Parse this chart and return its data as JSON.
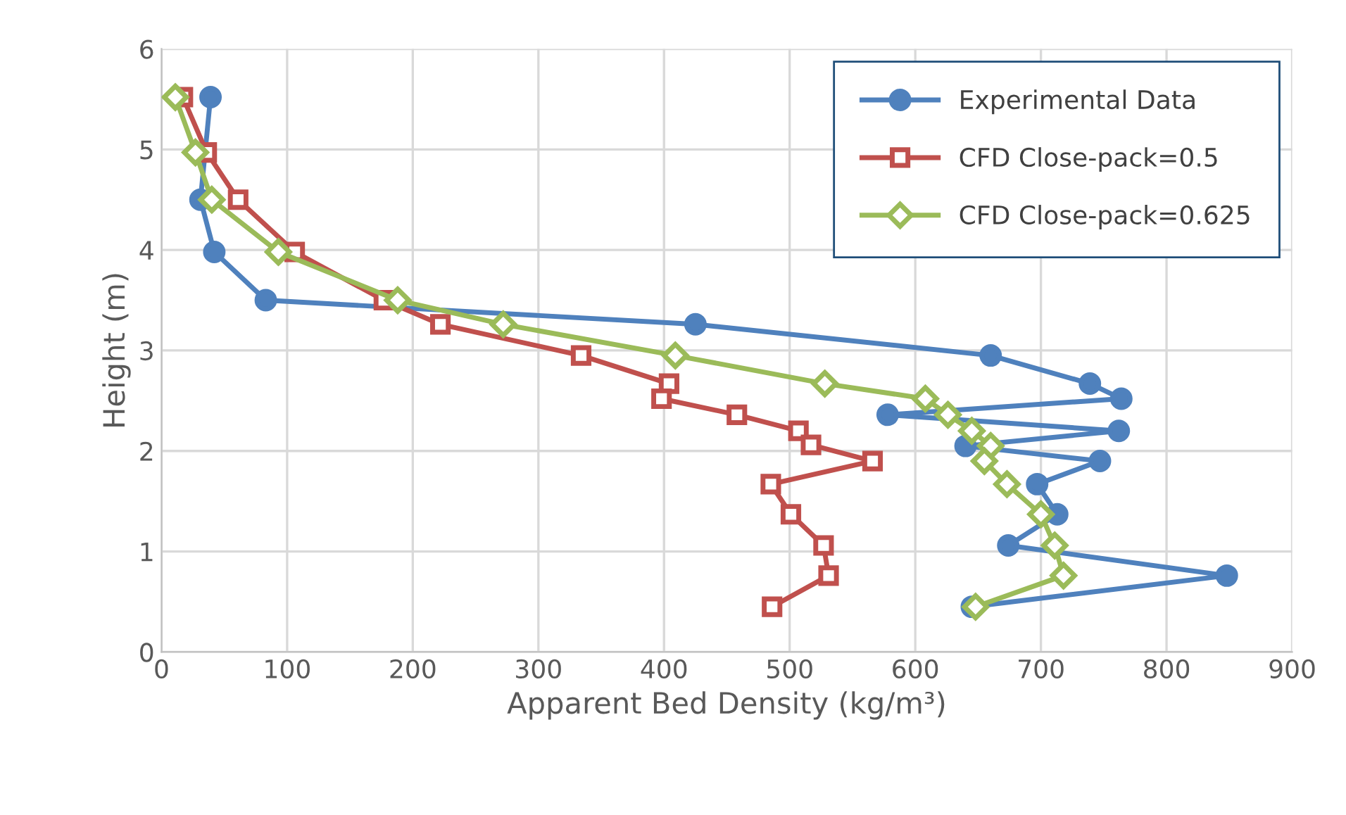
{
  "chart_data": {
    "type": "line",
    "xlabel": "Apparent Bed Density (kg/m³)",
    "ylabel": "Height (m)",
    "xlim": [
      0,
      900
    ],
    "xticks": [
      0,
      100,
      200,
      300,
      400,
      500,
      600,
      700,
      800,
      900
    ],
    "ylim": [
      0,
      6
    ],
    "yticks": [
      0,
      1,
      2,
      3,
      4,
      5,
      6
    ],
    "grid": true,
    "legend": "top right",
    "series": [
      {
        "name": "Experimental Data",
        "color": "#4f81bd",
        "marker": "circle",
        "x": [
          39,
          31,
          42,
          83,
          425,
          660,
          739,
          764,
          578,
          762,
          640,
          747,
          697,
          713,
          674,
          848,
          645
        ],
        "values": [
          5.52,
          4.5,
          3.98,
          3.5,
          3.26,
          2.95,
          2.67,
          2.52,
          2.36,
          2.2,
          2.05,
          1.9,
          1.67,
          1.37,
          1.06,
          0.76,
          0.45
        ]
      },
      {
        "name": "CFD Close-pack=0.5",
        "color": "#c0504d",
        "marker": "square",
        "x": [
          17,
          36,
          61,
          106,
          177,
          222,
          334,
          404,
          398,
          458,
          507,
          517,
          566,
          485,
          501,
          527,
          531,
          486
        ],
        "values": [
          5.52,
          4.97,
          4.5,
          3.98,
          3.5,
          3.26,
          2.95,
          2.67,
          2.52,
          2.36,
          2.2,
          2.06,
          1.9,
          1.67,
          1.37,
          1.06,
          0.76,
          0.45
        ]
      },
      {
        "name": "CFD Close-pack=0.625",
        "color": "#9bbb59",
        "marker": "diamond",
        "x": [
          11,
          27,
          40,
          93,
          188,
          272,
          409,
          528,
          608,
          626,
          645,
          660,
          655,
          673,
          700,
          711,
          718,
          648
        ],
        "values": [
          5.52,
          4.97,
          4.5,
          3.98,
          3.5,
          3.26,
          2.95,
          2.67,
          2.52,
          2.36,
          2.2,
          2.05,
          1.9,
          1.67,
          1.37,
          1.06,
          0.76,
          0.45
        ]
      }
    ]
  }
}
